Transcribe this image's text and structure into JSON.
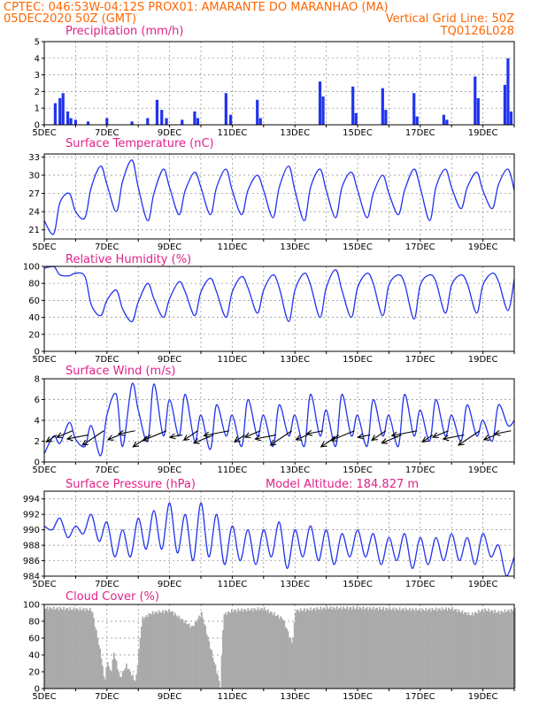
{
  "header": {
    "line1": "CPTEC:  046:53W-04:12S  PROX01: AMARANTE DO MARANHAO (MA)",
    "date": "05DEC2020 50Z (GMT)",
    "vgrid": "Vertical Grid Line: 50Z",
    "code": "TQ0126L028"
  },
  "colors": {
    "header": "#ff6600",
    "title": "#e0218a",
    "series": "#2233ee",
    "cloud": "#aaaaaa",
    "grid": "#888888"
  },
  "date_labels": [
    "5DEC",
    "7DEC",
    "9DEC",
    "11DEC",
    "13DEC",
    "15DEC",
    "17DEC",
    "19DEC"
  ],
  "chart_data": [
    {
      "type": "bar",
      "title": "Precipitation (mm/h)",
      "x_range_days": [
        5,
        20
      ],
      "ylim": [
        0,
        5
      ],
      "yticks": [
        "0",
        "1",
        "2",
        "3",
        "4",
        "5"
      ],
      "grid": true,
      "values": [
        {
          "day": 5.35,
          "v": 1.3
        },
        {
          "day": 5.5,
          "v": 1.6
        },
        {
          "day": 5.6,
          "v": 1.9
        },
        {
          "day": 5.75,
          "v": 0.8
        },
        {
          "day": 5.85,
          "v": 0.4
        },
        {
          "day": 6.0,
          "v": 0.3
        },
        {
          "day": 6.4,
          "v": 0.2
        },
        {
          "day": 7.0,
          "v": 0.4
        },
        {
          "day": 7.8,
          "v": 0.2
        },
        {
          "day": 8.3,
          "v": 0.4
        },
        {
          "day": 8.6,
          "v": 1.5
        },
        {
          "day": 8.75,
          "v": 0.9
        },
        {
          "day": 8.9,
          "v": 0.4
        },
        {
          "day": 9.4,
          "v": 0.3
        },
        {
          "day": 9.8,
          "v": 0.8
        },
        {
          "day": 9.9,
          "v": 0.4
        },
        {
          "day": 10.8,
          "v": 1.9
        },
        {
          "day": 10.95,
          "v": 0.6
        },
        {
          "day": 11.8,
          "v": 1.5
        },
        {
          "day": 11.9,
          "v": 0.4
        },
        {
          "day": 13.8,
          "v": 2.6
        },
        {
          "day": 13.9,
          "v": 1.7
        },
        {
          "day": 14.85,
          "v": 2.3
        },
        {
          "day": 14.95,
          "v": 0.7
        },
        {
          "day": 15.8,
          "v": 2.2
        },
        {
          "day": 15.9,
          "v": 0.9
        },
        {
          "day": 16.8,
          "v": 1.9
        },
        {
          "day": 16.9,
          "v": 0.5
        },
        {
          "day": 17.75,
          "v": 0.6
        },
        {
          "day": 17.85,
          "v": 0.3
        },
        {
          "day": 18.75,
          "v": 2.9
        },
        {
          "day": 18.85,
          "v": 1.6
        },
        {
          "day": 19.7,
          "v": 2.4
        },
        {
          "day": 19.8,
          "v": 4.0
        },
        {
          "day": 19.9,
          "v": 0.8
        }
      ]
    },
    {
      "type": "line",
      "title": "Surface Temperature (nC)",
      "x_range_days": [
        5,
        20
      ],
      "ylim": [
        19.5,
        33.5
      ],
      "yticks": [
        "21",
        "24",
        "27",
        "30",
        "33"
      ],
      "grid": true,
      "x": [
        5.0,
        5.3,
        5.5,
        5.8,
        6.0,
        6.3,
        6.5,
        6.8,
        7.0,
        7.3,
        7.5,
        7.8,
        8.0,
        8.3,
        8.5,
        8.8,
        9.0,
        9.3,
        9.5,
        9.8,
        10.0,
        10.3,
        10.5,
        10.8,
        11.0,
        11.3,
        11.5,
        11.8,
        12.0,
        12.3,
        12.5,
        12.8,
        13.0,
        13.3,
        13.5,
        13.8,
        14.0,
        14.3,
        14.5,
        14.8,
        15.0,
        15.3,
        15.5,
        15.8,
        16.0,
        16.3,
        16.5,
        16.8,
        17.0,
        17.3,
        17.5,
        17.8,
        18.0,
        18.3,
        18.5,
        18.8,
        19.0,
        19.3,
        19.5,
        19.8,
        20.0
      ],
      "values": [
        22.5,
        20.3,
        25.5,
        27.0,
        24.0,
        23.0,
        28.0,
        31.5,
        28.5,
        24.0,
        29.0,
        32.5,
        28.0,
        22.5,
        27.0,
        31.0,
        28.0,
        23.5,
        27.5,
        30.5,
        28.0,
        23.5,
        28.0,
        31.0,
        27.5,
        23.5,
        27.5,
        30.0,
        27.5,
        23.0,
        28.0,
        31.5,
        27.5,
        22.5,
        28.0,
        31.0,
        27.5,
        23.0,
        28.0,
        30.5,
        27.5,
        23.0,
        27.0,
        30.0,
        27.0,
        23.5,
        27.5,
        31.0,
        28.0,
        22.5,
        28.0,
        31.0,
        28.0,
        24.5,
        28.0,
        30.5,
        27.5,
        24.5,
        28.5,
        31.0,
        27.5
      ]
    },
    {
      "type": "line",
      "title": "Relative Humidity (%)",
      "x_range_days": [
        5,
        20
      ],
      "ylim": [
        0,
        100
      ],
      "yticks": [
        "0",
        "20",
        "40",
        "60",
        "80",
        "100"
      ],
      "grid": true,
      "x": [
        5.0,
        5.3,
        5.5,
        5.8,
        6.0,
        6.3,
        6.5,
        6.8,
        7.0,
        7.3,
        7.5,
        7.8,
        8.0,
        8.3,
        8.5,
        8.8,
        9.0,
        9.3,
        9.5,
        9.8,
        10.0,
        10.3,
        10.5,
        10.8,
        11.0,
        11.3,
        11.5,
        11.8,
        12.0,
        12.3,
        12.5,
        12.8,
        13.0,
        13.3,
        13.5,
        13.8,
        14.0,
        14.3,
        14.5,
        14.8,
        15.0,
        15.3,
        15.5,
        15.8,
        16.0,
        16.3,
        16.5,
        16.8,
        17.0,
        17.3,
        17.5,
        17.8,
        18.0,
        18.3,
        18.5,
        18.8,
        19.0,
        19.3,
        19.5,
        19.8,
        20.0
      ],
      "values": [
        98,
        100,
        90,
        89,
        92,
        88,
        55,
        42,
        60,
        72,
        50,
        35,
        58,
        80,
        62,
        40,
        62,
        82,
        70,
        42,
        70,
        86,
        70,
        40,
        70,
        88,
        75,
        45,
        72,
        90,
        75,
        35,
        72,
        92,
        78,
        40,
        75,
        96,
        72,
        40,
        75,
        92,
        80,
        42,
        78,
        90,
        80,
        38,
        78,
        90,
        82,
        45,
        78,
        90,
        80,
        45,
        78,
        92,
        82,
        48,
        85
      ]
    },
    {
      "type": "line",
      "title": "Surface Wind (m/s)",
      "x_range_days": [
        5,
        20
      ],
      "ylim": [
        0,
        8
      ],
      "yticks": [
        "0",
        "2",
        "4",
        "6",
        "8"
      ],
      "grid": true,
      "x": [
        5.0,
        5.3,
        5.5,
        5.8,
        6.0,
        6.3,
        6.5,
        6.8,
        7.0,
        7.3,
        7.5,
        7.8,
        8.0,
        8.3,
        8.5,
        8.8,
        9.0,
        9.3,
        9.5,
        9.8,
        10.0,
        10.3,
        10.5,
        10.8,
        11.0,
        11.3,
        11.5,
        11.8,
        12.0,
        12.3,
        12.5,
        12.8,
        13.0,
        13.3,
        13.5,
        13.8,
        14.0,
        14.3,
        14.5,
        14.8,
        15.0,
        15.3,
        15.5,
        15.8,
        16.0,
        16.3,
        16.5,
        16.8,
        17.0,
        17.3,
        17.5,
        17.8,
        18.0,
        18.3,
        18.5,
        18.8,
        19.0,
        19.3,
        19.5,
        19.8,
        20.0
      ],
      "values": [
        0.8,
        2.5,
        1.8,
        3.8,
        2.2,
        1.5,
        3.5,
        0.6,
        4.5,
        6.5,
        1.5,
        7.5,
        5.0,
        2.0,
        7.5,
        2.5,
        6.0,
        2.5,
        6.5,
        2.0,
        4.5,
        1.2,
        5.5,
        2.5,
        4.5,
        1.5,
        6.0,
        2.5,
        4.5,
        1.5,
        5.5,
        2.5,
        4.5,
        1.5,
        6.5,
        2.5,
        5.0,
        1.5,
        6.5,
        2.5,
        4.5,
        1.5,
        6.0,
        2.5,
        4.5,
        1.5,
        6.5,
        2.5,
        5.0,
        2.0,
        6.0,
        2.5,
        4.5,
        2.0,
        5.5,
        2.5,
        4.0,
        2.0,
        5.5,
        3.5,
        4.0
      ]
    },
    {
      "type": "line",
      "title": "Surface Pressure (hPa)",
      "annotation": "Model Altitude: 184.827 m",
      "x_range_days": [
        5,
        20
      ],
      "ylim": [
        984,
        995
      ],
      "yticks": [
        "984",
        "986",
        "988",
        "990",
        "992",
        "994"
      ],
      "grid": true,
      "x": [
        5.0,
        5.25,
        5.5,
        5.75,
        6.0,
        6.25,
        6.5,
        6.75,
        7.0,
        7.25,
        7.5,
        7.75,
        8.0,
        8.25,
        8.5,
        8.75,
        9.0,
        9.25,
        9.5,
        9.75,
        10.0,
        10.25,
        10.5,
        10.75,
        11.0,
        11.25,
        11.5,
        11.75,
        12.0,
        12.25,
        12.5,
        12.75,
        13.0,
        13.25,
        13.5,
        13.75,
        14.0,
        14.25,
        14.5,
        14.75,
        15.0,
        15.25,
        15.5,
        15.75,
        16.0,
        16.25,
        16.5,
        16.75,
        17.0,
        17.25,
        17.5,
        17.75,
        18.0,
        18.25,
        18.5,
        18.75,
        19.0,
        19.25,
        19.5,
        19.75,
        20.0
      ],
      "values": [
        990.5,
        990.0,
        991.5,
        989.0,
        990.5,
        989.5,
        992.0,
        988.5,
        991.0,
        986.5,
        990.0,
        986.5,
        991.5,
        987.5,
        992.5,
        987.5,
        993.5,
        987.0,
        992.0,
        986.0,
        993.5,
        986.5,
        992.0,
        985.5,
        990.5,
        986.0,
        990.0,
        985.5,
        990.0,
        986.5,
        991.0,
        985.0,
        990.0,
        986.5,
        990.5,
        986.0,
        990.0,
        985.5,
        989.5,
        986.5,
        990.0,
        986.5,
        989.5,
        985.5,
        989.0,
        986.0,
        989.5,
        985.0,
        989.0,
        985.5,
        989.0,
        986.0,
        989.5,
        986.0,
        989.0,
        985.5,
        989.5,
        986.5,
        988.0,
        984.0,
        986.5
      ]
    },
    {
      "type": "area",
      "title": "Cloud Cover (%)",
      "x_range_days": [
        5,
        20
      ],
      "ylim": [
        0,
        100
      ],
      "yticks": [
        "0",
        "20",
        "40",
        "60",
        "80",
        "100"
      ],
      "grid": true,
      "values": [
        {
          "day": 5.0,
          "v": 98
        },
        {
          "day": 6.5,
          "v": 96
        },
        {
          "day": 6.8,
          "v": 40
        },
        {
          "day": 6.9,
          "v": 10
        },
        {
          "day": 7.0,
          "v": 35
        },
        {
          "day": 7.1,
          "v": 20
        },
        {
          "day": 7.2,
          "v": 45
        },
        {
          "day": 7.4,
          "v": 15
        },
        {
          "day": 7.6,
          "v": 30
        },
        {
          "day": 7.9,
          "v": 10
        },
        {
          "day": 8.1,
          "v": 85
        },
        {
          "day": 8.4,
          "v": 92
        },
        {
          "day": 9.0,
          "v": 95
        },
        {
          "day": 9.7,
          "v": 75
        },
        {
          "day": 10.0,
          "v": 92
        },
        {
          "day": 10.5,
          "v": 20
        },
        {
          "day": 10.6,
          "v": 5
        },
        {
          "day": 10.7,
          "v": 90
        },
        {
          "day": 11.0,
          "v": 95
        },
        {
          "day": 12.0,
          "v": 97
        },
        {
          "day": 12.6,
          "v": 85
        },
        {
          "day": 12.9,
          "v": 55
        },
        {
          "day": 13.0,
          "v": 95
        },
        {
          "day": 14.0,
          "v": 98
        },
        {
          "day": 15.0,
          "v": 98
        },
        {
          "day": 16.0,
          "v": 97
        },
        {
          "day": 17.0,
          "v": 96
        },
        {
          "day": 18.0,
          "v": 97
        },
        {
          "day": 18.6,
          "v": 90
        },
        {
          "day": 19.0,
          "v": 96
        },
        {
          "day": 19.5,
          "v": 93
        },
        {
          "day": 20.0,
          "v": 96
        }
      ]
    }
  ]
}
